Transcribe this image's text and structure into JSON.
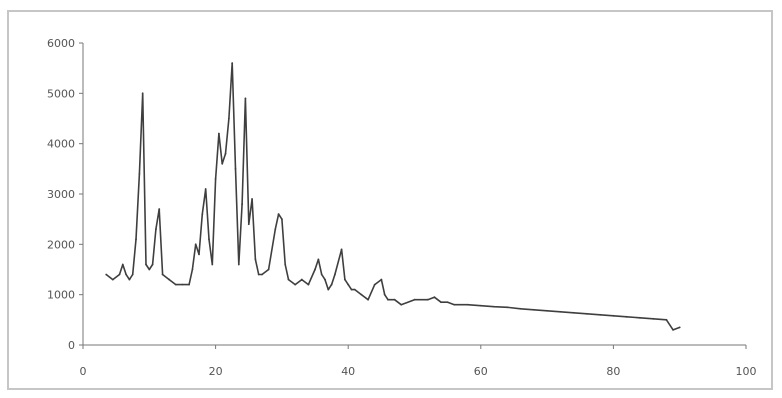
{
  "chart_data": {
    "type": "line",
    "title": "",
    "xlabel": "",
    "ylabel": "",
    "xlim": [
      0,
      100
    ],
    "ylim": [
      0,
      6000
    ],
    "xticks": [
      0,
      20,
      40,
      60,
      80,
      100
    ],
    "yticks": [
      0,
      1000,
      2000,
      3000,
      4000,
      5000,
      6000
    ],
    "xtick_labels": [
      "0",
      "20",
      "40",
      "60",
      "80",
      "100"
    ],
    "ytick_labels": [
      "0",
      "1000",
      "2000",
      "3000",
      "4000",
      "5000",
      "6000"
    ],
    "grid": false,
    "line_color": "#3f3f3f",
    "series": [
      {
        "x": [
          3.5,
          4.5,
          5.5,
          6.0,
          6.5,
          7.0,
          7.5,
          8.0,
          8.5,
          9.0,
          9.5,
          10.0,
          10.5,
          11.0,
          11.5,
          12.0,
          13.0,
          14.0,
          15.0,
          16.0,
          16.5,
          17.0,
          17.5,
          18.0,
          18.5,
          19.0,
          19.5,
          20.0,
          20.5,
          21.0,
          21.5,
          22.0,
          22.5,
          23.0,
          23.5,
          24.0,
          24.5,
          25.0,
          25.5,
          26.0,
          26.5,
          27.0,
          28.0,
          29.0,
          29.5,
          30.0,
          30.5,
          31.0,
          32.0,
          33.0,
          34.0,
          35.0,
          35.5,
          36.0,
          36.5,
          37.0,
          37.5,
          38.0,
          39.0,
          39.5,
          40.0,
          40.5,
          41.0,
          42.0,
          43.0,
          44.0,
          45.0,
          45.5,
          46.0,
          47.0,
          48.0,
          50.0,
          52.0,
          53.0,
          54.0,
          55.0,
          56.0,
          58.0,
          60.0,
          62.0,
          64.0,
          66.0,
          68.0,
          70.0,
          72.0,
          74.0,
          76.0,
          78.0,
          80.0,
          82.0,
          84.0,
          86.0,
          88.0,
          89.0,
          90.0
        ],
        "y": [
          1400,
          1300,
          1400,
          1600,
          1400,
          1300,
          1400,
          2100,
          3400,
          5000,
          1600,
          1500,
          1600,
          2300,
          2700,
          1400,
          1300,
          1200,
          1200,
          1200,
          1500,
          2000,
          1800,
          2600,
          3100,
          2100,
          1600,
          3300,
          4200,
          3600,
          3800,
          4500,
          5600,
          3500,
          1600,
          2800,
          4900,
          2400,
          2900,
          1700,
          1400,
          1400,
          1500,
          2300,
          2600,
          2500,
          1600,
          1300,
          1200,
          1300,
          1200,
          1500,
          1700,
          1400,
          1300,
          1100,
          1200,
          1400,
          1900,
          1300,
          1200,
          1100,
          1100,
          1000,
          900,
          1200,
          1300,
          1000,
          900,
          900,
          800,
          900,
          900,
          950,
          850,
          850,
          800,
          800,
          780,
          760,
          750,
          720,
          700,
          680,
          660,
          640,
          620,
          600,
          580,
          560,
          540,
          520,
          500,
          300,
          350
        ]
      }
    ]
  }
}
